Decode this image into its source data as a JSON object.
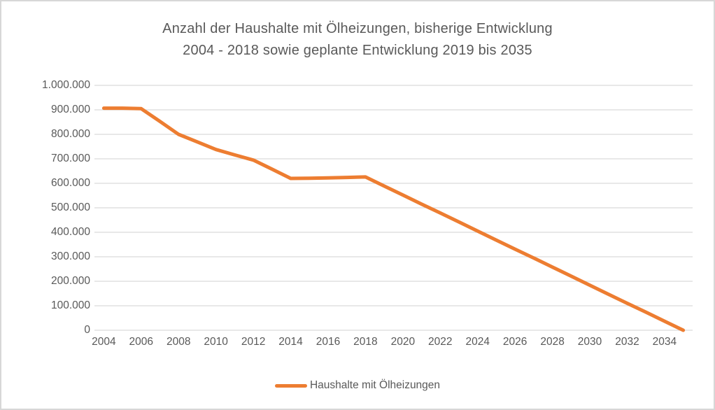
{
  "window": {
    "background_color": "#ffffff",
    "border_color": "#d7d7d7"
  },
  "chart_data": {
    "type": "line",
    "title_line1": "Anzahl der Haushalte mit Ölheizungen, bisherige Entwicklung",
    "title_line2": "2004 - 2018 sowie geplante Entwicklung 2019 bis 2035",
    "xlabel": "",
    "ylabel": "",
    "x": [
      2004,
      2005,
      2006,
      2007,
      2008,
      2009,
      2010,
      2011,
      2012,
      2013,
      2014,
      2015,
      2016,
      2017,
      2018,
      2019,
      2020,
      2021,
      2022,
      2023,
      2024,
      2025,
      2026,
      2027,
      2028,
      2029,
      2030,
      2031,
      2032,
      2033,
      2034,
      2035
    ],
    "series": [
      {
        "name": "Haushalte mit Ölheizungen",
        "color": "#ED7D31",
        "values": [
          907000,
          907000,
          905000,
          853000,
          800000,
          769000,
          738000,
          716000,
          695000,
          658000,
          620000,
          621000,
          622000,
          624000,
          626000,
          589000,
          552000,
          515000,
          479000,
          442000,
          405000,
          368000,
          331000,
          295000,
          258000,
          221000,
          184000,
          147000,
          110000,
          74000,
          37000,
          0
        ]
      }
    ],
    "ylim": [
      0,
      1000000
    ],
    "y_ticks": [
      1000000,
      900000,
      800000,
      700000,
      600000,
      500000,
      400000,
      300000,
      200000,
      100000,
      0
    ],
    "y_tick_labels": [
      "1.000.000",
      "900.000",
      "800.000",
      "700.000",
      "600.000",
      "500.000",
      "400.000",
      "300.000",
      "200.000",
      "100.000",
      "0"
    ],
    "x_tick_labels": [
      "2004",
      "2006",
      "2008",
      "2010",
      "2012",
      "2014",
      "2016",
      "2018",
      "2020",
      "2022",
      "2024",
      "2026",
      "2028",
      "2030",
      "2032",
      "2034"
    ],
    "grid": true,
    "gridline_color": "#D9D9D9",
    "text_color": "#595959",
    "legend_position": "bottom"
  }
}
